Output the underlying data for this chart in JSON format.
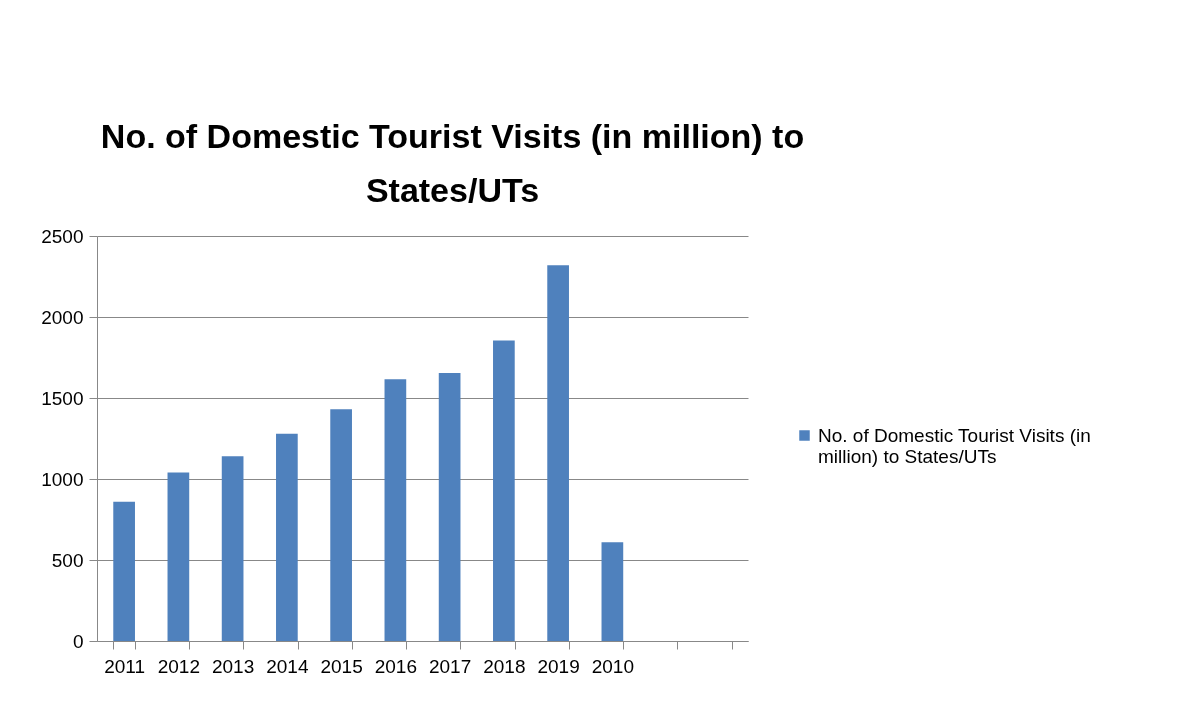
{
  "chart_data": {
    "type": "bar",
    "title": "No. of Domestic Tourist Visits (in million) to States/UTs",
    "categories": [
      "2011",
      "2012",
      "2013",
      "2014",
      "2015",
      "2016",
      "2017",
      "2018",
      "2019",
      "2010",
      null,
      null
    ],
    "series": [
      {
        "name": "No. of Domestic Tourist Visits (in million) to States/UTs",
        "color": "#4f81bd",
        "values": [
          860,
          1040,
          1140,
          1280,
          1430,
          1615,
          1655,
          1855,
          2320,
          610,
          null,
          null
        ]
      }
    ],
    "ylim": [
      0,
      2500
    ],
    "yticks": [
      0,
      500,
      1000,
      1500,
      2000,
      2500
    ],
    "grid": "y",
    "legend": "right"
  }
}
